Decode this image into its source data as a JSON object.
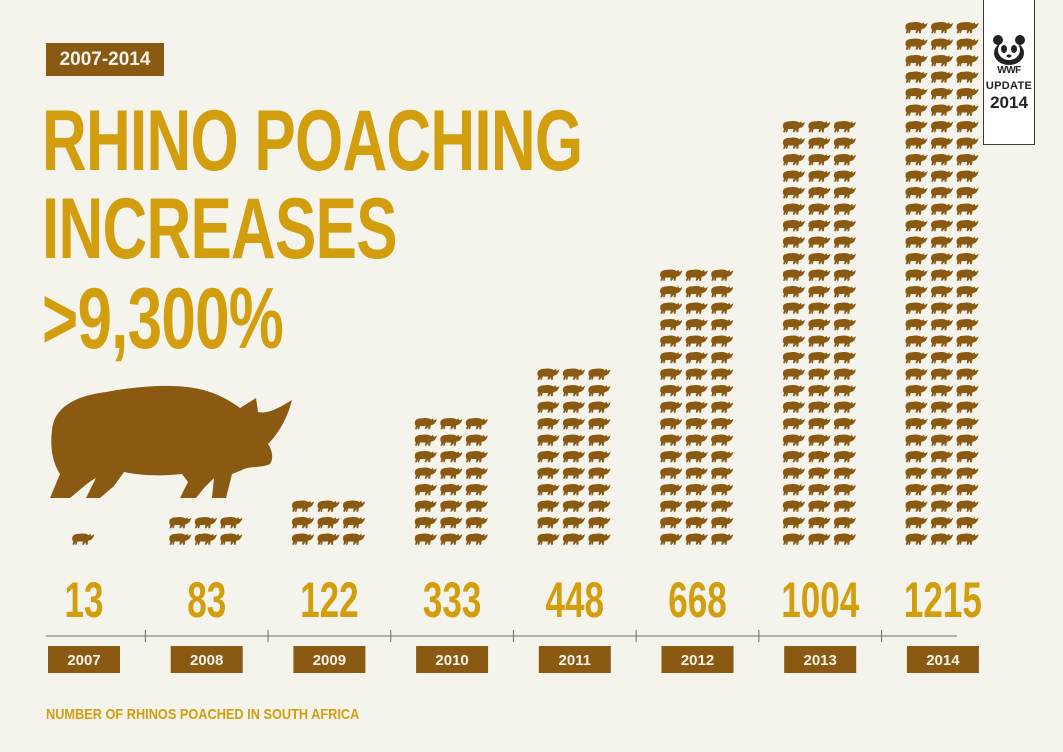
{
  "header": {
    "range_badge": "2007-2014",
    "headline_lines": [
      "RHINO POACHING",
      "INCREASES",
      ">9,300%"
    ]
  },
  "logo": {
    "name": "WWF",
    "update_label": "UPDATE",
    "update_year": "2014"
  },
  "footnote": "NUMBER OF RHINOS POACHED IN SOUTH AFRICA",
  "colors": {
    "background": "#f4f3ec",
    "headline": "#d39e0d",
    "rhino": "#8a5a12",
    "year_box": "#8a5a12",
    "axis": "#6e6e6e"
  },
  "icons": {
    "big": "rhino-silhouette-icon",
    "unit": "rhino-icon",
    "logo": "panda-icon"
  },
  "chart_data": {
    "type": "bar",
    "categories": [
      "2007",
      "2008",
      "2009",
      "2010",
      "2011",
      "2012",
      "2013",
      "2014"
    ],
    "values": [
      13,
      83,
      122,
      333,
      448,
      668,
      1004,
      1215
    ],
    "title": "",
    "xlabel": "",
    "ylabel": "NUMBER OF RHINOS POACHED IN SOUTH AFRICA",
    "grid": false,
    "legend": "none",
    "icon_counts": [
      1,
      6,
      9,
      24,
      33,
      51,
      78,
      96
    ],
    "icon_columns": 3
  }
}
